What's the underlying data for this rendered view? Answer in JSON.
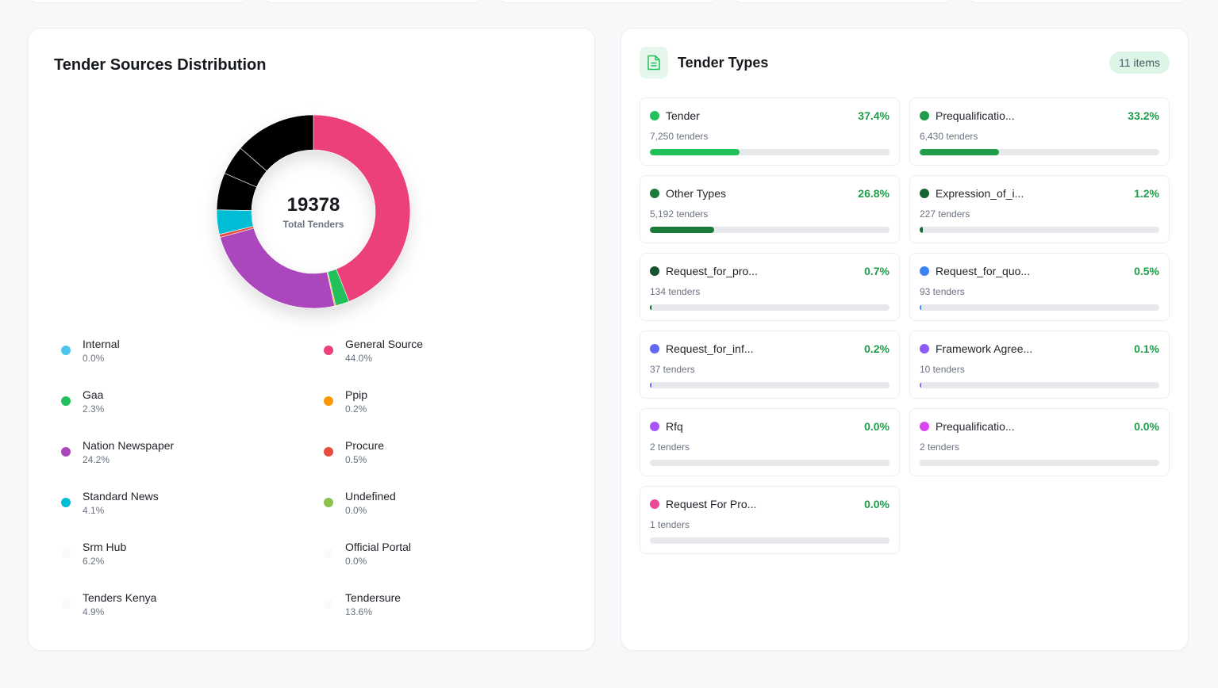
{
  "sources": {
    "title": "Tender Sources Distribution",
    "total": "19378",
    "total_caption": "Total Tenders",
    "legend": [
      {
        "name": "Internal",
        "pct": "0.0%",
        "color": "#4cc4ec"
      },
      {
        "name": "General Source",
        "pct": "44.0%",
        "color": "#ec407a"
      },
      {
        "name": "Gaa",
        "pct": "2.3%",
        "color": "#22c05a"
      },
      {
        "name": "Ppip",
        "pct": "0.2%",
        "color": "#ff9800"
      },
      {
        "name": "Nation Newspaper",
        "pct": "24.2%",
        "color": "#ab47bc"
      },
      {
        "name": "Procure",
        "pct": "0.5%",
        "color": "#e74c3c"
      },
      {
        "name": "Standard News",
        "pct": "4.1%",
        "color": "#00bcd4"
      },
      {
        "name": "Undefined",
        "pct": "0.0%",
        "color": "#8bc34a"
      },
      {
        "name": "Srm Hub",
        "pct": "6.2%",
        "color": "#000000"
      },
      {
        "name": "Official Portal",
        "pct": "0.0%",
        "color": "#000000"
      },
      {
        "name": "Tenders Kenya",
        "pct": "4.9%",
        "color": "#000000"
      },
      {
        "name": "Tendersure",
        "pct": "13.6%",
        "color": "#000000"
      }
    ]
  },
  "chart_data": {
    "type": "pie",
    "donut": true,
    "center_value": 19378,
    "center_label": "Total Tenders",
    "slices": [
      {
        "label": "General Source",
        "value": 44.0,
        "color": "#ec407a"
      },
      {
        "label": "Gaa",
        "value": 2.3,
        "color": "#22c05a"
      },
      {
        "label": "Ppip",
        "value": 0.2,
        "color": "#ff9800"
      },
      {
        "label": "Nation Newspaper",
        "value": 24.2,
        "color": "#ab47bc"
      },
      {
        "label": "Procure",
        "value": 0.5,
        "color": "#e74c3c"
      },
      {
        "label": "Standard News",
        "value": 4.1,
        "color": "#00bcd4"
      },
      {
        "label": "Undefined",
        "value": 0.0,
        "color": "#8bc34a"
      },
      {
        "label": "Srm Hub",
        "value": 6.2,
        "color": "#000000"
      },
      {
        "label": "Official Portal",
        "value": 0.0,
        "color": "#000000"
      },
      {
        "label": "Tenders Kenya",
        "value": 4.9,
        "color": "#000000"
      },
      {
        "label": "Tendersure",
        "value": 13.6,
        "color": "#000000"
      },
      {
        "label": "Internal",
        "value": 0.0,
        "color": "#4cc4ec"
      }
    ]
  },
  "types": {
    "title": "Tender Types",
    "badge": "11 items",
    "icon": "document-icon",
    "accent": "#22c05a",
    "items": [
      {
        "name": "Tender",
        "pct": "37.4%",
        "fraction": 0.374,
        "count": "7,250 tenders",
        "color": "#22c05a"
      },
      {
        "name": "Prequalificatio...",
        "pct": "33.2%",
        "fraction": 0.332,
        "count": "6,430 tenders",
        "color": "#1f9d4a"
      },
      {
        "name": "Other Types",
        "pct": "26.8%",
        "fraction": 0.268,
        "count": "5,192 tenders",
        "color": "#1b7a3a"
      },
      {
        "name": "Expression_of_i...",
        "pct": "1.2%",
        "fraction": 0.012,
        "count": "227 tenders",
        "color": "#166534"
      },
      {
        "name": "Request_for_pro...",
        "pct": "0.7%",
        "fraction": 0.007,
        "count": "134 tenders",
        "color": "#14532d"
      },
      {
        "name": "Request_for_quo...",
        "pct": "0.5%",
        "fraction": 0.005,
        "count": "93 tenders",
        "color": "#3b82f6"
      },
      {
        "name": "Request_for_inf...",
        "pct": "0.2%",
        "fraction": 0.002,
        "count": "37 tenders",
        "color": "#6366f1"
      },
      {
        "name": "Framework Agree...",
        "pct": "0.1%",
        "fraction": 0.001,
        "count": "10 tenders",
        "color": "#8b5cf6"
      },
      {
        "name": "Rfq",
        "pct": "0.0%",
        "fraction": 0.0,
        "count": "2 tenders",
        "color": "#a855f7"
      },
      {
        "name": "Prequalificatio...",
        "pct": "0.0%",
        "fraction": 0.0,
        "count": "2 tenders",
        "color": "#d946ef"
      },
      {
        "name": "Request For Pro...",
        "pct": "0.0%",
        "fraction": 0.0,
        "count": "1 tenders",
        "color": "#ec4899"
      }
    ]
  }
}
